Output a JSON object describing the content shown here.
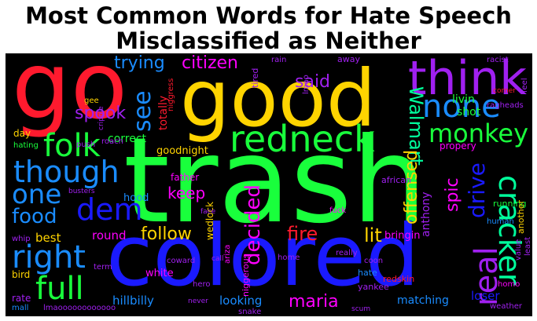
{
  "title": {
    "line1": "Most Common Words for Hate Speech",
    "line2": "Misclassified as Neither"
  },
  "colors": {
    "background": "#000000",
    "red": "#ff1a2e",
    "yellow": "#ffd400",
    "green": "#19ff3c",
    "blue": "#1a1aff",
    "purple": "#a020f0",
    "cyan": "#00ff9c",
    "magenta": "#ff00ff"
  },
  "words": {
    "trash": "trash",
    "colored": "colored",
    "good": "good",
    "go": "go",
    "think": "think",
    "redneck": "redneck",
    "none": "none",
    "folk": "folk",
    "though": "though",
    "right": "right",
    "full": "full",
    "one": "one",
    "dem": "dem",
    "food": "food",
    "monkey": "monkey",
    "cracker": "cracker",
    "real": "real",
    "drive": "drive",
    "decided": "decided",
    "fire": "fire",
    "lit": "lit",
    "follow": "follow",
    "maria": "maria",
    "see": "see",
    "trying": "trying",
    "citizen": "citizen",
    "said": "said",
    "walmart": "Walmart",
    "spook": "spook",
    "offensed": "offensed",
    "spic": "spic",
    "keep": "keep",
    "round": "round",
    "best": "best",
    "loser": "loser",
    "hillbilly": "hillbilly",
    "looking": "looking",
    "matching": "matching",
    "white": "white",
    "correct": "correct",
    "goodnight": "goodnight",
    "totally": "totally",
    "livin": "livin",
    "shot": "shot",
    "propery": "propery",
    "anthony": "anthony",
    "bringin": "bringin",
    "father": "father",
    "hood": "hood",
    "wedlock": "wedlock",
    "african": "african",
    "running": "running",
    "another": "another",
    "human": "human",
    "value": "value",
    "least": "least",
    "weather": "weather",
    "homo": "homo",
    "redskin": "redskin",
    "yankee": "yankee",
    "hate": "hate",
    "niggerous": "niggerous",
    "ariza": "ariza",
    "home": "home",
    "really": "really",
    "coon": "coon",
    "fuck": "fuck",
    "coward": "coward",
    "hero": "hero",
    "snake": "snake",
    "bird": "bird",
    "rate": "rate",
    "mall": "mall",
    "term": "term",
    "whip": "whip",
    "day": "day",
    "hating": "hating",
    "roach": "roach",
    "push": "push",
    "gee": "gee",
    "rain": "rain",
    "away": "away",
    "racist": "racist",
    "tired": "tired",
    "niggress": "niggress",
    "feel": "feel",
    "ragheads": "ragheads",
    "corner": "corner",
    "Imao": "lmao",
    "lmaooo": "lmaoooooooooooo",
    "face": "face",
    "call": "call",
    "busters": "busters",
    "scum": "scum",
    "cripple": "cripple",
    "never": "never"
  }
}
